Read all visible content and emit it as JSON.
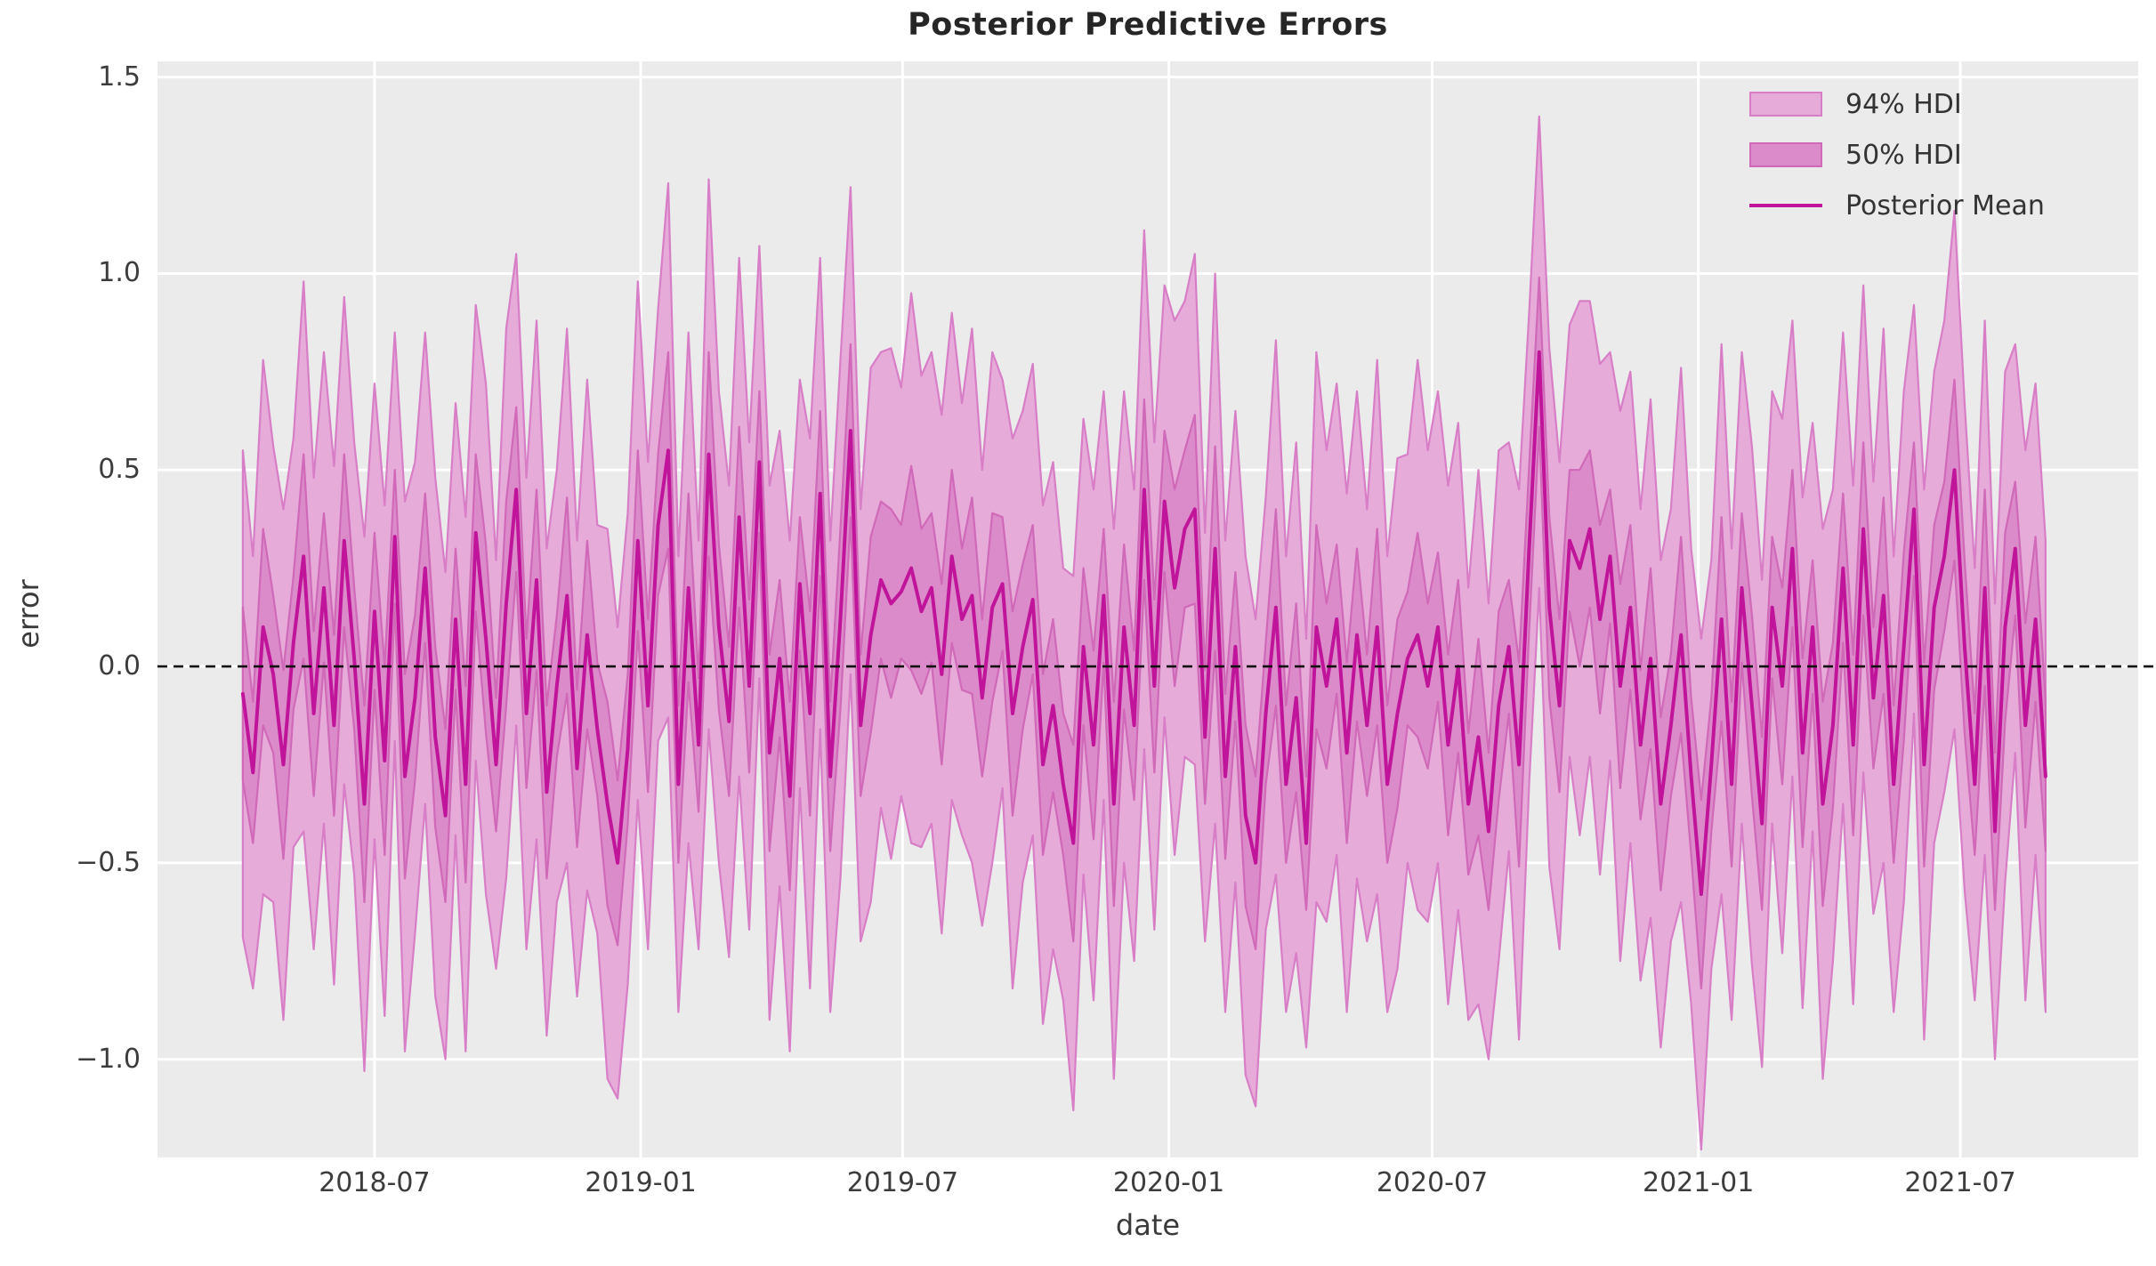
{
  "title": "Posterior Predictive Errors",
  "axis": {
    "xlabel": "date",
    "ylabel": "error"
  },
  "legend": {
    "hdi94": "94% HDI",
    "hdi50": "50% HDI",
    "mean": "Posterior Mean"
  },
  "colors": {
    "figure_bg": "#ffffff",
    "axes_bg": "#ebebeb",
    "grid": "#ffffff",
    "hdi94_fill": "#e6abd8",
    "hdi94_edge": "#d77ec7",
    "hdi50_fill": "#dc8bca",
    "hdi50_edge": "#cf69b8",
    "mean_line": "#c0159a",
    "zero_line": "#111111",
    "tick_text": "#3c3c3c",
    "title_text": "#262626"
  },
  "chart_data": {
    "type": "area",
    "title": "Posterior Predictive Errors",
    "xlabel": "date",
    "ylabel": "error",
    "grid": true,
    "legend_position": "upper right",
    "x_ticks": [
      "2018-07",
      "2019-01",
      "2019-07",
      "2020-01",
      "2020-07",
      "2021-01",
      "2021-07"
    ],
    "y_ticks": [
      1.5,
      1.0,
      0.5,
      0.0,
      -0.5,
      -1.0
    ],
    "y_tick_labels": [
      "1.5",
      "1.0",
      "0.5",
      "0.0",
      "−0.5",
      "−1.0"
    ],
    "xlim": [
      "2018-02-01",
      "2021-11-01"
    ],
    "ylim": [
      -1.25,
      1.54
    ],
    "zero_line": 0.0,
    "x_start_date": "2018-04-01",
    "x_step_days": 7,
    "n_points": 179,
    "series": [
      {
        "name": "Posterior Mean",
        "type": "line",
        "values": [
          -0.07,
          -0.27,
          0.1,
          -0.02,
          -0.25,
          0.06,
          0.28,
          -0.12,
          0.2,
          -0.15,
          0.32,
          0.02,
          -0.35,
          0.14,
          -0.24,
          0.33,
          -0.28,
          -0.08,
          0.25,
          -0.18,
          -0.38,
          0.12,
          -0.3,
          0.34,
          0.07,
          -0.25,
          0.16,
          0.45,
          -0.12,
          0.22,
          -0.32,
          -0.05,
          0.18,
          -0.26,
          0.08,
          -0.16,
          -0.35,
          -0.5,
          -0.21,
          0.32,
          -0.1,
          0.36,
          0.55,
          -0.3,
          0.2,
          -0.2,
          0.54,
          0.1,
          -0.14,
          0.38,
          -0.05,
          0.52,
          -0.22,
          0.02,
          -0.33,
          0.21,
          -0.12,
          0.44,
          -0.28,
          0.12,
          0.6,
          -0.15,
          0.08,
          0.22,
          0.16,
          0.19,
          0.25,
          0.14,
          0.2,
          -0.02,
          0.28,
          0.12,
          0.18,
          -0.08,
          0.15,
          0.21,
          -0.12,
          0.05,
          0.17,
          -0.25,
          -0.1,
          -0.3,
          -0.45,
          0.05,
          -0.2,
          0.18,
          -0.35,
          0.1,
          -0.15,
          0.45,
          -0.05,
          0.42,
          0.2,
          0.35,
          0.4,
          -0.18,
          0.3,
          -0.28,
          0.05,
          -0.38,
          -0.5,
          -0.12,
          0.15,
          -0.3,
          -0.08,
          -0.45,
          0.1,
          -0.05,
          0.12,
          -0.22,
          0.08,
          -0.15,
          0.1,
          -0.3,
          -0.12,
          0.02,
          0.08,
          -0.05,
          0.1,
          -0.2,
          0.0,
          -0.35,
          -0.18,
          -0.42,
          -0.1,
          0.05,
          -0.25,
          0.3,
          0.8,
          0.15,
          -0.1,
          0.32,
          0.25,
          0.35,
          0.12,
          0.28,
          -0.05,
          0.15,
          -0.2,
          0.02,
          -0.35,
          -0.15,
          0.08,
          -0.28,
          -0.58,
          -0.25,
          0.12,
          -0.3,
          0.2,
          -0.1,
          -0.4,
          0.15,
          -0.05,
          0.3,
          -0.22,
          0.1,
          -0.35,
          -0.15,
          0.25,
          -0.2,
          0.35,
          -0.08,
          0.18,
          -0.3,
          0.05,
          0.4,
          -0.25,
          0.15,
          0.28,
          0.5,
          0.05,
          -0.3,
          0.2,
          -0.42,
          0.1,
          0.3,
          -0.15,
          0.12,
          -0.28
        ]
      },
      {
        "name": "50% HDI",
        "type": "band",
        "half_width": [
          0.22,
          0.18,
          0.25,
          0.2,
          0.24,
          0.17,
          0.26,
          0.21,
          0.19,
          0.23,
          0.22,
          0.18,
          0.25,
          0.2,
          0.24,
          0.17,
          0.26,
          0.21,
          0.19,
          0.23,
          0.22,
          0.18,
          0.25,
          0.2,
          0.24,
          0.17,
          0.26,
          0.21,
          0.19,
          0.23,
          0.22,
          0.18,
          0.25,
          0.2,
          0.24,
          0.17,
          0.26,
          0.21,
          0.19,
          0.23,
          0.22,
          0.18,
          0.25,
          0.2,
          0.24,
          0.17,
          0.26,
          0.21,
          0.19,
          0.23,
          0.22,
          0.18,
          0.25,
          0.2,
          0.24,
          0.17,
          0.26,
          0.21,
          0.19,
          0.23,
          0.22,
          0.18,
          0.25,
          0.2,
          0.24,
          0.17,
          0.26,
          0.21,
          0.19,
          0.23,
          0.22,
          0.18,
          0.25,
          0.2,
          0.24,
          0.17,
          0.26,
          0.21,
          0.19,
          0.23,
          0.22,
          0.18,
          0.25,
          0.2,
          0.24,
          0.17,
          0.26,
          0.21,
          0.19,
          0.23,
          0.22,
          0.18,
          0.25,
          0.2,
          0.24,
          0.17,
          0.26,
          0.21,
          0.19,
          0.23,
          0.22,
          0.18,
          0.25,
          0.2,
          0.24,
          0.17,
          0.26,
          0.21,
          0.19,
          0.23,
          0.22,
          0.18,
          0.25,
          0.2,
          0.24,
          0.17,
          0.26,
          0.21,
          0.19,
          0.23,
          0.22,
          0.18,
          0.25,
          0.2,
          0.24,
          0.17,
          0.26,
          0.21,
          0.19,
          0.23,
          0.22,
          0.18,
          0.25,
          0.2,
          0.24,
          0.17,
          0.26,
          0.21,
          0.19,
          0.23,
          0.22,
          0.18,
          0.25,
          0.2,
          0.24,
          0.17,
          0.26,
          0.21,
          0.19,
          0.23,
          0.22,
          0.18,
          0.25,
          0.2,
          0.24,
          0.17,
          0.26,
          0.21,
          0.19,
          0.23,
          0.22,
          0.18,
          0.25,
          0.2,
          0.24,
          0.17,
          0.26,
          0.21,
          0.19,
          0.23,
          0.22,
          0.18,
          0.25,
          0.2,
          0.24,
          0.17,
          0.26,
          0.21,
          0.19
        ]
      },
      {
        "name": "94% HDI",
        "type": "band",
        "half_width": [
          0.62,
          0.55,
          0.68,
          0.58,
          0.65,
          0.52,
          0.7,
          0.6,
          0.6,
          0.66,
          0.62,
          0.55,
          0.68,
          0.58,
          0.65,
          0.52,
          0.7,
          0.6,
          0.6,
          0.66,
          0.62,
          0.55,
          0.68,
          0.58,
          0.65,
          0.52,
          0.7,
          0.6,
          0.6,
          0.66,
          0.62,
          0.55,
          0.68,
          0.58,
          0.65,
          0.52,
          0.7,
          0.6,
          0.6,
          0.66,
          0.62,
          0.55,
          0.68,
          0.58,
          0.65,
          0.52,
          0.7,
          0.6,
          0.6,
          0.66,
          0.62,
          0.55,
          0.68,
          0.58,
          0.65,
          0.52,
          0.7,
          0.6,
          0.6,
          0.66,
          0.62,
          0.55,
          0.68,
          0.58,
          0.65,
          0.52,
          0.7,
          0.6,
          0.6,
          0.66,
          0.62,
          0.55,
          0.68,
          0.58,
          0.65,
          0.52,
          0.7,
          0.6,
          0.6,
          0.66,
          0.62,
          0.55,
          0.68,
          0.58,
          0.65,
          0.52,
          0.7,
          0.6,
          0.6,
          0.66,
          0.62,
          0.55,
          0.68,
          0.58,
          0.65,
          0.52,
          0.7,
          0.6,
          0.6,
          0.66,
          0.62,
          0.55,
          0.68,
          0.58,
          0.65,
          0.52,
          0.7,
          0.6,
          0.6,
          0.66,
          0.62,
          0.55,
          0.68,
          0.58,
          0.65,
          0.52,
          0.7,
          0.6,
          0.6,
          0.66,
          0.62,
          0.55,
          0.68,
          0.58,
          0.65,
          0.52,
          0.7,
          0.6,
          0.6,
          0.66,
          0.62,
          0.55,
          0.68,
          0.58,
          0.65,
          0.52,
          0.7,
          0.6,
          0.6,
          0.66,
          0.62,
          0.55,
          0.68,
          0.58,
          0.65,
          0.52,
          0.7,
          0.6,
          0.6,
          0.66,
          0.62,
          0.55,
          0.68,
          0.58,
          0.65,
          0.52,
          0.7,
          0.6,
          0.6,
          0.66,
          0.62,
          0.55,
          0.68,
          0.58,
          0.65,
          0.52,
          0.7,
          0.6,
          0.6,
          0.66,
          0.62,
          0.55,
          0.68,
          0.58,
          0.65,
          0.52,
          0.7,
          0.6,
          0.6
        ]
      }
    ]
  }
}
